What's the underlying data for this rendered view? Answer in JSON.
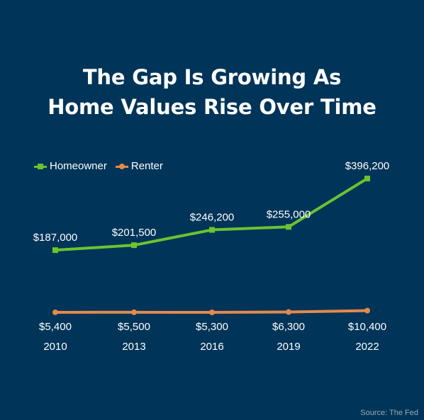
{
  "title_line1": "The Gap Is Growing As",
  "title_line2": "Home Values Rise Over Time",
  "source": "Source: The Fed",
  "colors": {
    "background": "#003458",
    "homeowner": "#6ac42f",
    "renter": "#e5894b",
    "text": "#ffffff"
  },
  "chart_data": {
    "type": "line",
    "categories": [
      "2010",
      "2013",
      "2016",
      "2019",
      "2022"
    ],
    "series": [
      {
        "name": "Homeowner",
        "values": [
          187000,
          201500,
          246200,
          255000,
          396200
        ],
        "labels": [
          "$187,000",
          "$201,500",
          "$246,200",
          "$255,000",
          "$396,200"
        ]
      },
      {
        "name": "Renter",
        "values": [
          5400,
          5500,
          5300,
          6300,
          10400
        ],
        "labels": [
          "$5,400",
          "$5,500",
          "$5,300",
          "$6,300",
          "$10,400"
        ]
      }
    ],
    "legend": "top-left",
    "grid": false
  }
}
